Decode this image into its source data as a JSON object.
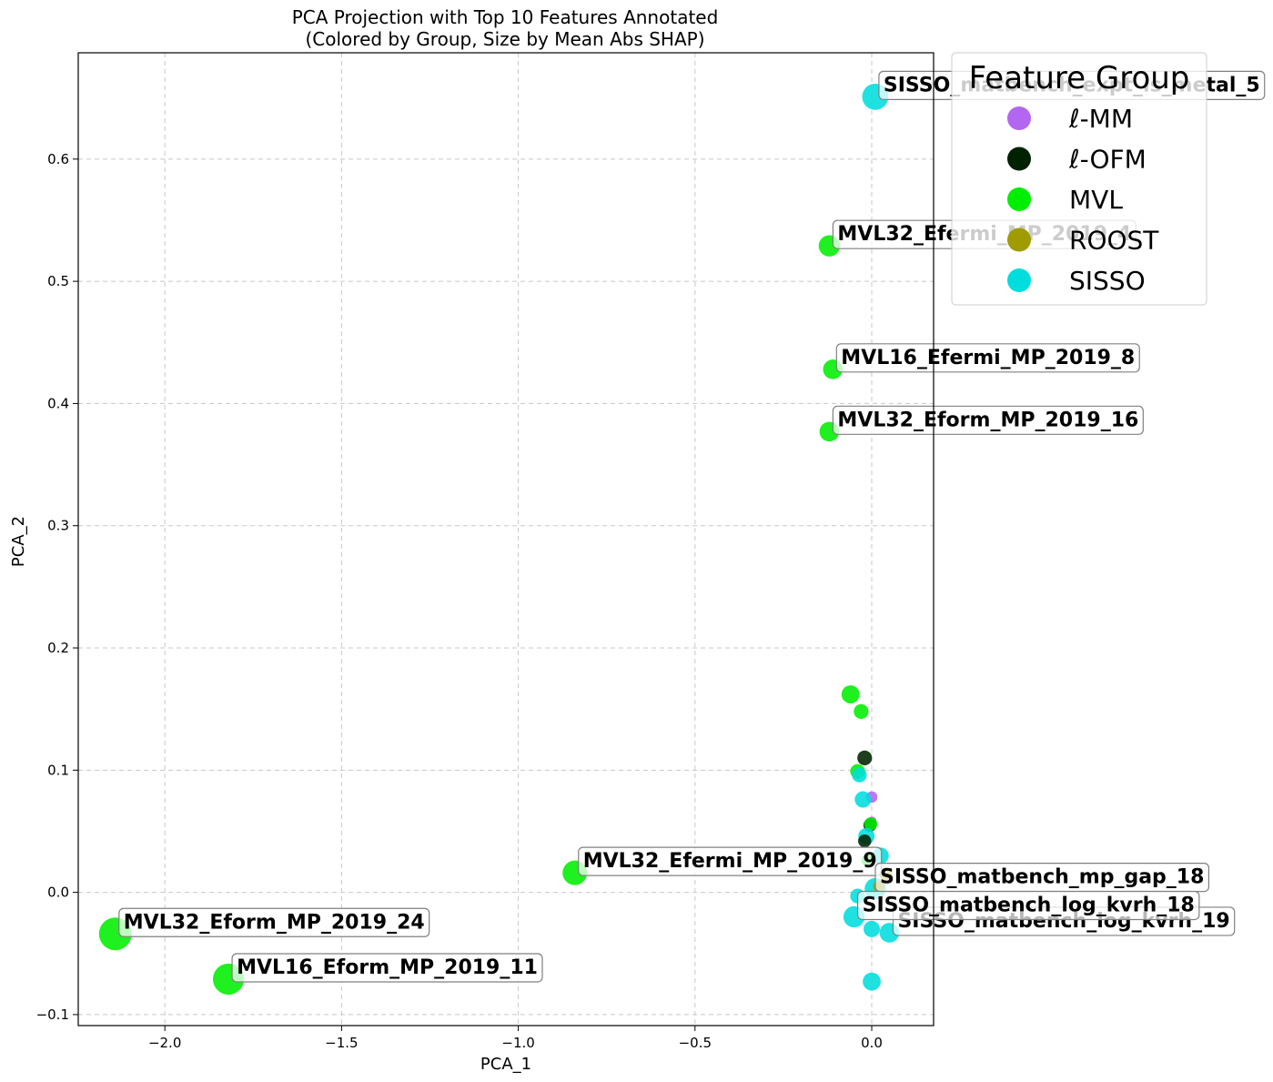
{
  "chart_data": {
    "type": "scatter",
    "title": [
      "PCA Projection with Top 10 Features Annotated",
      "(Colored by Group, Size by Mean Abs SHAP)"
    ],
    "xlabel": "PCA_1",
    "ylabel": "PCA_2",
    "xlim": [
      -2.245,
      0.175
    ],
    "ylim": [
      -0.109,
      0.687
    ],
    "xticks": [
      -2.0,
      -1.5,
      -1.0,
      -0.5,
      0.0
    ],
    "xtick_labels": [
      "−2.0",
      "−1.5",
      "−1.0",
      "−0.5",
      "0.0"
    ],
    "yticks": [
      -0.1,
      0.0,
      0.1,
      0.2,
      0.3,
      0.4,
      0.5,
      0.6
    ],
    "ytick_labels": [
      "−0.1",
      "0.0",
      "0.1",
      "0.2",
      "0.3",
      "0.4",
      "0.5",
      "0.6"
    ],
    "grid": true,
    "legend": {
      "title": "Feature Group",
      "placement": "upper-right-outside",
      "entries": [
        {
          "name": "ℓ-MM",
          "color": "#b366f0"
        },
        {
          "name": "ℓ-OFM",
          "color": "#002200"
        },
        {
          "name": "MVL",
          "color": "#00ee00"
        },
        {
          "name": "ROOST",
          "color": "#a09c00"
        },
        {
          "name": "SISSO",
          "color": "#00dddd"
        }
      ]
    },
    "group_colors": {
      "ℓ-MM": "#b366f0",
      "ℓ-OFM": "#002200",
      "MVL": "#00ee00",
      "ROOST": "#a09c00",
      "SISSO": "#00dddd"
    },
    "points": [
      {
        "x": 0.01,
        "y": 0.651,
        "group": "SISSO",
        "size": 1.6
      },
      {
        "x": -0.12,
        "y": 0.529,
        "group": "MVL",
        "size": 1.3
      },
      {
        "x": -0.11,
        "y": 0.428,
        "group": "MVL",
        "size": 1.2
      },
      {
        "x": -0.12,
        "y": 0.377,
        "group": "MVL",
        "size": 1.2
      },
      {
        "x": -0.84,
        "y": 0.016,
        "group": "MVL",
        "size": 1.5
      },
      {
        "x": -2.14,
        "y": -0.034,
        "group": "MVL",
        "size": 2.0
      },
      {
        "x": -1.82,
        "y": -0.071,
        "group": "MVL",
        "size": 1.9
      },
      {
        "x": 0.01,
        "y": 0.003,
        "group": "SISSO",
        "size": 1.3
      },
      {
        "x": -0.05,
        "y": -0.02,
        "group": "SISSO",
        "size": 1.3
      },
      {
        "x": 0.05,
        "y": -0.033,
        "group": "SISSO",
        "size": 1.2
      },
      {
        "x": -0.06,
        "y": 0.162,
        "group": "MVL",
        "size": 1.1
      },
      {
        "x": -0.03,
        "y": 0.148,
        "group": "MVL",
        "size": 0.9
      },
      {
        "x": -0.02,
        "y": 0.11,
        "group": "ℓ-OFM",
        "size": 0.9
      },
      {
        "x": -0.04,
        "y": 0.099,
        "group": "MVL",
        "size": 0.9
      },
      {
        "x": -0.035,
        "y": 0.096,
        "group": "SISSO",
        "size": 0.9
      },
      {
        "x": 0.0,
        "y": 0.078,
        "group": "ℓ-MM",
        "size": 0.7
      },
      {
        "x": -0.025,
        "y": 0.076,
        "group": "SISSO",
        "size": 1.0
      },
      {
        "x": 0.0,
        "y": 0.058,
        "group": "ℓ-MM",
        "size": 0.6
      },
      {
        "x": -0.005,
        "y": 0.055,
        "group": "ℓ-OFM",
        "size": 0.8
      },
      {
        "x": -0.003,
        "y": 0.056,
        "group": "MVL",
        "size": 0.8
      },
      {
        "x": -0.015,
        "y": 0.046,
        "group": "SISSO",
        "size": 1.0
      },
      {
        "x": -0.02,
        "y": 0.042,
        "group": "ℓ-OFM",
        "size": 0.8
      },
      {
        "x": 0.025,
        "y": 0.03,
        "group": "SISSO",
        "size": 1.0
      },
      {
        "x": -0.01,
        "y": 0.026,
        "group": "MVL",
        "size": 0.8
      },
      {
        "x": 0.04,
        "y": 0.015,
        "group": "ROOST",
        "size": 0.8
      },
      {
        "x": 0.02,
        "y": 0.005,
        "group": "ROOST",
        "size": 0.7
      },
      {
        "x": -0.04,
        "y": -0.003,
        "group": "SISSO",
        "size": 0.9
      },
      {
        "x": 0.0,
        "y": -0.03,
        "group": "SISSO",
        "size": 1.0
      },
      {
        "x": 0.0,
        "y": -0.073,
        "group": "SISSO",
        "size": 1.1
      }
    ],
    "annotations": [
      {
        "text": "SISSO_matbench_expt_is_metal_5",
        "x": 0.01,
        "y": 0.651
      },
      {
        "text": "MVL32_Efermi_MP_2019_4",
        "x": -0.12,
        "y": 0.529
      },
      {
        "text": "MVL16_Efermi_MP_2019_8",
        "x": -0.11,
        "y": 0.428
      },
      {
        "text": "MVL32_Eform_MP_2019_16",
        "x": -0.12,
        "y": 0.377
      },
      {
        "text": "MVL32_Efermi_MP_2019_9",
        "x": -0.84,
        "y": 0.016
      },
      {
        "text": "MVL32_Eform_MP_2019_24",
        "x": -2.14,
        "y": -0.034
      },
      {
        "text": "MVL16_Eform_MP_2019_11",
        "x": -1.82,
        "y": -0.071
      },
      {
        "text": "SISSO_matbench_mp_gap_18",
        "x": 0.0,
        "y": 0.003
      },
      {
        "text": "SISSO_matbench_log_kvrh_19",
        "x": 0.05,
        "y": -0.033
      },
      {
        "text": "SISSO_matbench_log_kvrh_18",
        "x": -0.05,
        "y": -0.02
      }
    ]
  }
}
